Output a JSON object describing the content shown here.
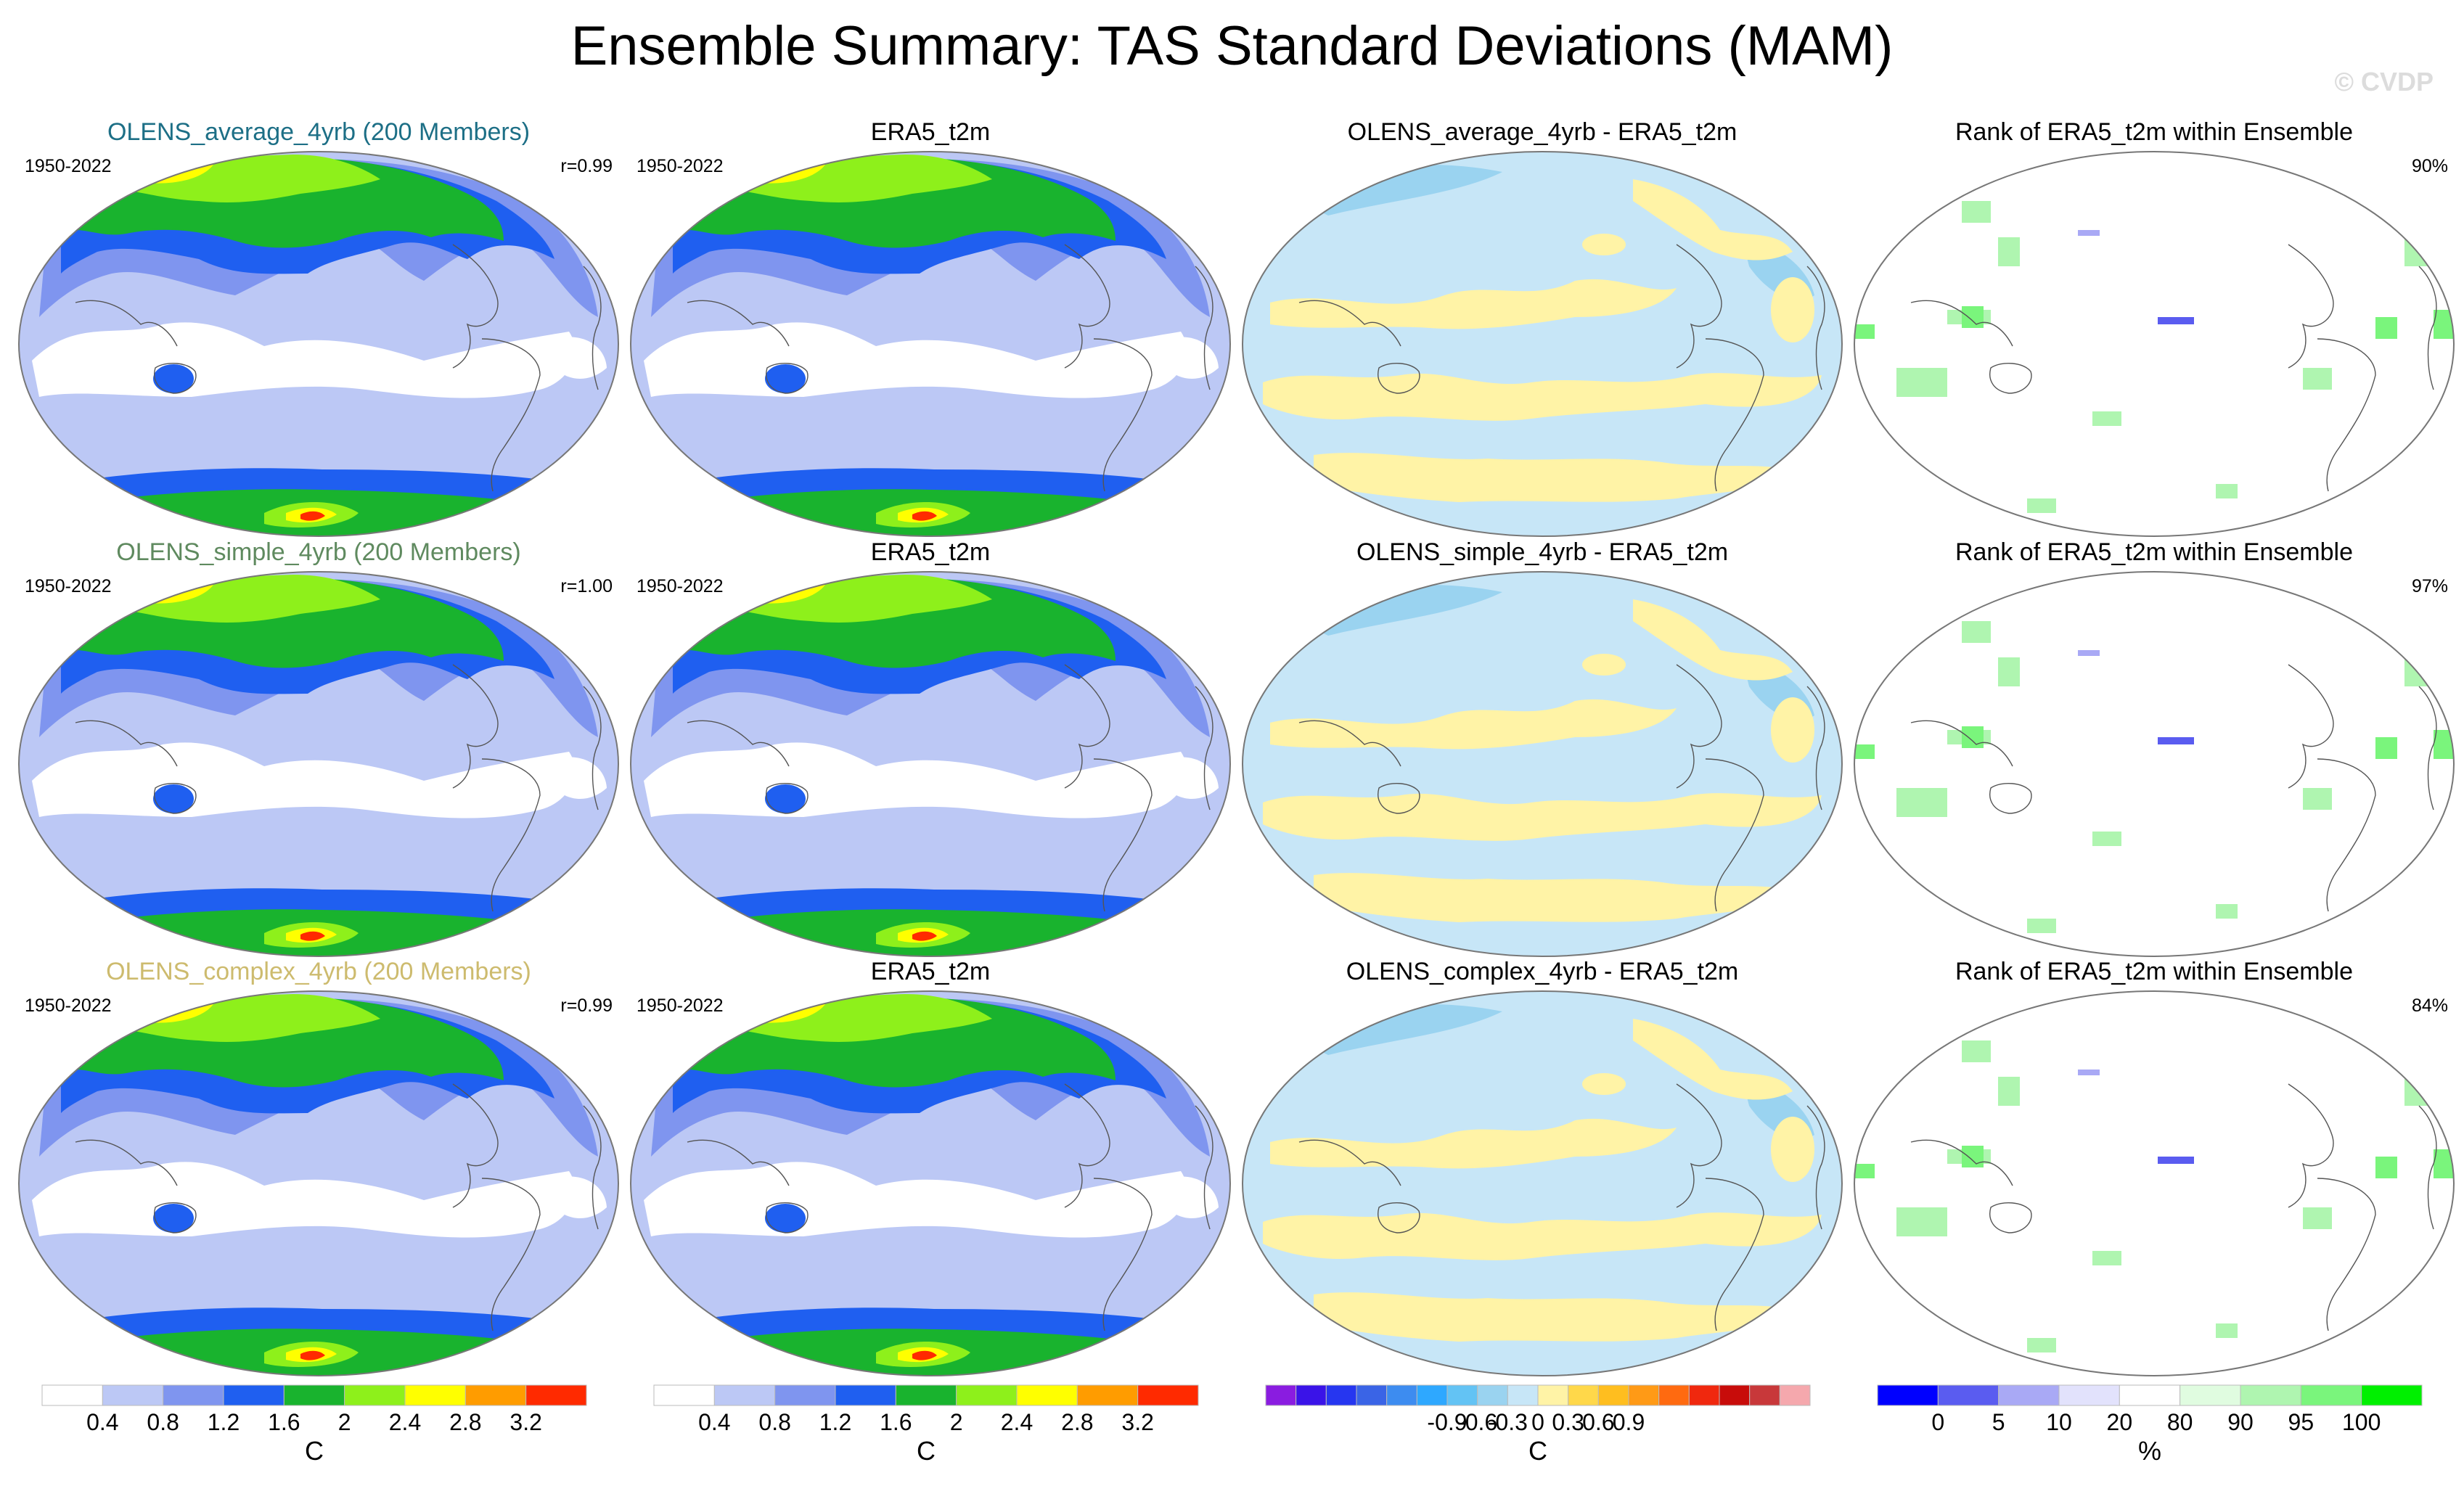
{
  "title": "Ensemble Summary: TAS Standard Deviations (MAM)",
  "watermark": "© CVDP",
  "rows": [
    {
      "ensemble": {
        "title": "OLENS_average_4yrb (200 Members)",
        "title_color": "#1d6f86",
        "years": "1950-2022",
        "stat": "r=0.99"
      },
      "obs": {
        "title": "ERA5_t2m",
        "years": "1950-2022"
      },
      "diff": {
        "title": "OLENS_average_4yrb - ERA5_t2m"
      },
      "rank": {
        "title": "Rank of ERA5_t2m within Ensemble",
        "stat": "90%"
      }
    },
    {
      "ensemble": {
        "title": "OLENS_simple_4yrb (200 Members)",
        "title_color": "#5f8a5f",
        "years": "1950-2022",
        "stat": "r=1.00"
      },
      "obs": {
        "title": "ERA5_t2m",
        "years": "1950-2022"
      },
      "diff": {
        "title": "OLENS_simple_4yrb - ERA5_t2m"
      },
      "rank": {
        "title": "Rank of ERA5_t2m within Ensemble",
        "stat": "97%"
      }
    },
    {
      "ensemble": {
        "title": "OLENS_complex_4yrb (200 Members)",
        "title_color": "#cdbb6e",
        "years": "1950-2022",
        "stat": "r=0.99"
      },
      "obs": {
        "title": "ERA5_t2m",
        "years": "1950-2022"
      },
      "diff": {
        "title": "OLENS_complex_4yrb - ERA5_t2m"
      },
      "rank": {
        "title": "Rank of ERA5_t2m within Ensemble",
        "stat": "84%"
      }
    }
  ],
  "colorbars": {
    "std": {
      "unit": "C",
      "colors": [
        "#ffffff",
        "#bcc8f5",
        "#7f95ef",
        "#1f5ff0",
        "#19b32e",
        "#8ef01b",
        "#ffff00",
        "#ff9c00",
        "#ff2a00"
      ],
      "labels": [
        "0.4",
        "0.8",
        "1.2",
        "1.6",
        "2",
        "2.4",
        "2.8",
        "3.2"
      ]
    },
    "diff": {
      "unit": "C",
      "colors": [
        "#8a1ce0",
        "#3a13e8",
        "#2636f0",
        "#3a64e6",
        "#3d8cf0",
        "#2ea8ff",
        "#63c3f4",
        "#9ad3f0",
        "#c7e6f7",
        "#fff3a6",
        "#ffd84a",
        "#ffbe1f",
        "#ff9a16",
        "#ff6a10",
        "#f0280e",
        "#c80c0a",
        "#c8383a",
        "#f5a8ad"
      ],
      "labels": [
        "-0.9",
        "-0.6",
        "-0.3",
        "0",
        "0.3",
        "0.6",
        "0.9"
      ]
    },
    "rank": {
      "unit": "%",
      "colors": [
        "#0000ff",
        "#5a5cf0",
        "#a9a9f5",
        "#e2e2fc",
        "#ffffff",
        "#e0fce0",
        "#aff5b0",
        "#7af57c",
        "#00f000"
      ],
      "labels": [
        "0",
        "5",
        "10",
        "20",
        "80",
        "90",
        "95",
        "100"
      ]
    }
  }
}
